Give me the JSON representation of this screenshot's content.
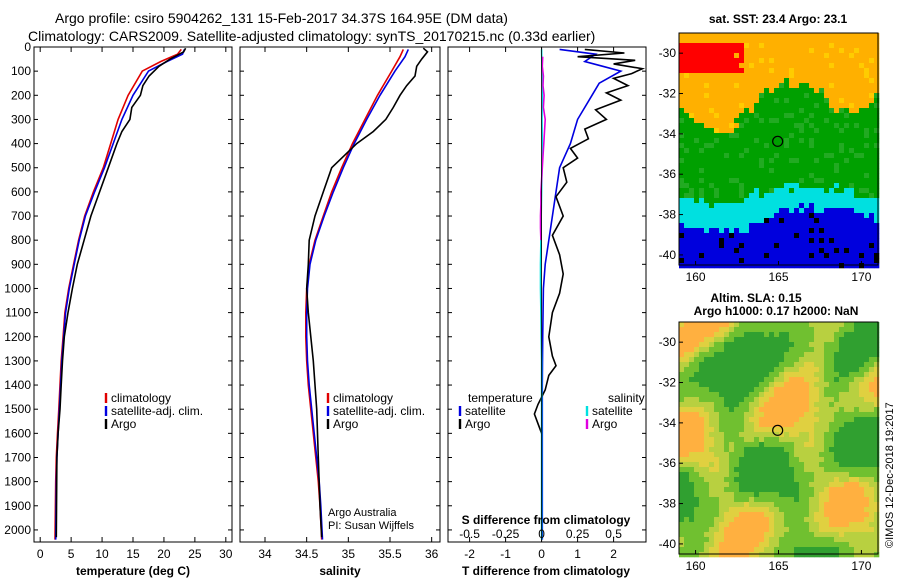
{
  "header": {
    "line1": "Argo profile: csiro 5904262_131 15-Feb-2017 34.37S 164.95E (DM data)",
    "line2": "Climatology: CARS2009. Satellite-adjusted climatology: synTS_20170215.nc (0.33d earlier)"
  },
  "colors": {
    "climatology": "#e00000",
    "satellite": "#0000e0",
    "argo": "#000000",
    "sat_salinity": "#00e0e0",
    "argo_salinity": "#e000e0"
  },
  "chart_data": [
    {
      "type": "line",
      "panel": "temperature",
      "xlabel": "temperature (deg C)",
      "xlim": [
        -1,
        31
      ],
      "xticks": [
        0,
        5,
        10,
        15,
        20,
        25,
        30
      ],
      "ylim": [
        2050,
        0
      ],
      "yticks": [
        0,
        100,
        200,
        300,
        400,
        500,
        600,
        700,
        800,
        900,
        1000,
        1100,
        1200,
        1300,
        1400,
        1500,
        1600,
        1700,
        1800,
        1900,
        2000
      ],
      "legend": [
        "climatology",
        "satellite-adj. clim.",
        "Argo"
      ],
      "series": [
        {
          "name": "climatology",
          "color": "#e00000",
          "x": [
            22.8,
            22.2,
            19.5,
            16.5,
            14.2,
            12.6,
            11.4,
            10.2,
            8.6,
            7.2,
            6.2,
            5.4,
            4.6,
            4.0,
            3.7,
            3.4,
            3.2,
            3.0,
            2.8,
            2.6,
            2.5,
            2.4
          ],
          "y": [
            10,
            30,
            60,
            100,
            200,
            300,
            400,
            500,
            600,
            700,
            800,
            900,
            1000,
            1100,
            1200,
            1300,
            1400,
            1500,
            1600,
            1700,
            1800,
            2040
          ]
        },
        {
          "name": "satellite-adj. clim.",
          "color": "#0000e0",
          "x": [
            23.3,
            23.0,
            20.5,
            17.5,
            15.0,
            13.2,
            11.8,
            10.4,
            8.8,
            7.3,
            6.3,
            5.5,
            4.7,
            4.1,
            3.8,
            3.5,
            3.3,
            3.1,
            2.9,
            2.7,
            2.6,
            2.5
          ],
          "y": [
            10,
            30,
            60,
            100,
            200,
            300,
            400,
            500,
            600,
            700,
            800,
            900,
            1000,
            1100,
            1200,
            1300,
            1400,
            1500,
            1600,
            1700,
            1800,
            2040
          ]
        },
        {
          "name": "Argo",
          "color": "#000000",
          "x": [
            23.5,
            23.2,
            21.0,
            19.2,
            17.6,
            16.6,
            16.2,
            14.8,
            14.5,
            13.2,
            12.4,
            11.0,
            9.6,
            8.2,
            7.1,
            6.0,
            5.2,
            4.5,
            3.9,
            3.6,
            3.4,
            3.2,
            2.9,
            2.7,
            2.6
          ],
          "y": [
            5,
            20,
            50,
            80,
            120,
            160,
            200,
            250,
            300,
            350,
            400,
            500,
            600,
            700,
            800,
            900,
            1000,
            1100,
            1200,
            1300,
            1400,
            1500,
            1600,
            1700,
            2030
          ]
        }
      ]
    },
    {
      "type": "line",
      "panel": "salinity",
      "xlabel": "salinity",
      "xlim": [
        33.7,
        36.1
      ],
      "xticks": [
        34,
        34.5,
        35,
        35.5,
        36
      ],
      "ylim": [
        2050,
        0
      ],
      "legend": [
        "climatology",
        "satellite-adj. clim.",
        "Argo"
      ],
      "annotations": [
        "Argo Australia",
        "PI: Susan Wijffels"
      ],
      "series": [
        {
          "name": "climatology",
          "color": "#e00000",
          "x": [
            35.66,
            35.62,
            35.52,
            35.35,
            35.2,
            35.05,
            34.92,
            34.8,
            34.7,
            34.6,
            34.53,
            34.5,
            34.49,
            34.49,
            34.5,
            34.52,
            34.55,
            34.58,
            34.61,
            34.64,
            34.66,
            34.68
          ],
          "y": [
            10,
            40,
            100,
            200,
            300,
            400,
            500,
            600,
            700,
            800,
            900,
            1000,
            1100,
            1200,
            1300,
            1400,
            1500,
            1600,
            1700,
            1800,
            1900,
            2040
          ]
        },
        {
          "name": "satellite-adj. clim.",
          "color": "#0000e0",
          "x": [
            35.72,
            35.68,
            35.56,
            35.38,
            35.22,
            35.07,
            34.94,
            34.82,
            34.71,
            34.61,
            34.54,
            34.51,
            34.5,
            34.5,
            34.51,
            34.53,
            34.56,
            34.59,
            34.62,
            34.65,
            34.67,
            34.69
          ],
          "y": [
            10,
            40,
            100,
            200,
            300,
            400,
            500,
            600,
            700,
            800,
            900,
            1000,
            1100,
            1200,
            1300,
            1400,
            1500,
            1600,
            1700,
            1800,
            1900,
            2040
          ]
        },
        {
          "name": "Argo",
          "color": "#000000",
          "x": [
            35.9,
            35.95,
            35.88,
            35.82,
            35.8,
            35.7,
            35.62,
            35.54,
            35.45,
            35.3,
            35.1,
            34.95,
            34.8,
            34.7,
            34.6,
            34.53,
            34.52,
            34.5,
            34.52,
            34.55,
            34.58,
            34.62,
            34.64,
            34.66,
            34.68
          ],
          "y": [
            5,
            20,
            50,
            80,
            120,
            160,
            200,
            250,
            300,
            350,
            400,
            450,
            500,
            600,
            700,
            800,
            900,
            1000,
            1100,
            1200,
            1300,
            1500,
            1700,
            1900,
            2030
          ]
        }
      ]
    },
    {
      "type": "line",
      "panel": "difference",
      "xlabel": "T difference from climatology",
      "xlabel_top": "S difference from climatology",
      "xlim": [
        -2.6,
        2.9
      ],
      "xticks": [
        -2,
        -1,
        0,
        1,
        2
      ],
      "xticks_top": [
        "-0.5",
        "-0.25",
        "0",
        "0.25",
        "0.5"
      ],
      "ylim": [
        2050,
        0
      ],
      "legend_left_title": "temperature",
      "legend_right_title": "salinity",
      "legend_left": [
        "satellite",
        "Argo"
      ],
      "legend_right": [
        "satellite",
        "Argo"
      ],
      "series": [
        {
          "name": "T satellite",
          "color": "#0000e0",
          "x": [
            0.5,
            1.5,
            1.2,
            1.7,
            2.2,
            1.6,
            1.4,
            1.0,
            0.8,
            0.5,
            0.4,
            0.2,
            0.1,
            0.05,
            0.03,
            0.02,
            0.02,
            0.02,
            0.02,
            0.02
          ],
          "y": [
            10,
            30,
            60,
            80,
            100,
            150,
            200,
            300,
            400,
            500,
            600,
            800,
            900,
            1000,
            1200,
            1400,
            1600,
            1800,
            1900,
            2040
          ]
        },
        {
          "name": "T Argo",
          "color": "#000000",
          "x": [
            1.2,
            2.3,
            1.0,
            2.6,
            2.0,
            2.8,
            2.5,
            2.0,
            2.4,
            1.8,
            2.2,
            1.5,
            1.8,
            1.2,
            1.3,
            0.8,
            1.0,
            0.6,
            0.7,
            0.4,
            0.6,
            0.3,
            0.5,
            0.6,
            0.5,
            0.3,
            0.2,
            0.3,
            0.4,
            0.2,
            0.1,
            -0.1,
            -0.2,
            -0.1,
            0.0
          ],
          "y": [
            10,
            25,
            40,
            55,
            70,
            90,
            110,
            130,
            160,
            190,
            220,
            260,
            300,
            340,
            380,
            420,
            460,
            500,
            560,
            620,
            700,
            780,
            860,
            940,
            1020,
            1100,
            1200,
            1280,
            1320,
            1360,
            1420,
            1480,
            1520,
            1560,
            1600
          ]
        },
        {
          "name": "S satellite",
          "color": "#00e0e0",
          "x": [
            0.0,
            0.01,
            0.02,
            0.01,
            0.02,
            0.01,
            0.0,
            -0.01,
            -0.02,
            -0.03,
            -0.03,
            -0.02,
            -0.01,
            0.0,
            0.0,
            0.0
          ],
          "y": [
            10,
            100,
            200,
            300,
            400,
            500,
            600,
            700,
            800,
            900,
            1000,
            1100,
            1200,
            1300,
            1400,
            2040
          ]
        },
        {
          "name": "S Argo",
          "color": "#e000e0",
          "x": [
            0.03,
            0.02,
            0.05,
            0.04,
            0.07,
            0.05,
            0.1,
            0.08,
            0.06,
            0.04,
            0.02,
            0.0,
            -0.02,
            -0.02,
            -0.03,
            -0.03,
            -0.02
          ],
          "y": [
            40,
            80,
            120,
            160,
            200,
            250,
            300,
            350,
            400,
            450,
            500,
            550,
            600,
            650,
            700,
            750,
            800
          ]
        }
      ]
    },
    {
      "type": "heatmap",
      "panel": "sst_map",
      "title": "sat. SST: 23.4 Argo: 23.1",
      "xlim": [
        159,
        171
      ],
      "xticks": [
        160,
        165,
        170
      ],
      "ylim": [
        -40.5,
        -29
      ],
      "yticks": [
        -30,
        -32,
        -34,
        -36,
        -38,
        -40
      ],
      "marker": {
        "lon": 164.95,
        "lat": -34.37
      }
    },
    {
      "type": "heatmap",
      "panel": "sla_map",
      "title": "Altim. SLA: 0.15",
      "subtitle": "Argo h1000: 0.17 h2000: NaN",
      "xlim": [
        159,
        171
      ],
      "xticks": [
        160,
        165,
        170
      ],
      "ylim": [
        -40.5,
        -29
      ],
      "yticks": [
        -30,
        -32,
        -34,
        -36,
        -38,
        -40
      ],
      "marker": {
        "lon": 164.95,
        "lat": -34.37
      }
    }
  ],
  "side_label": "©IMOS 12-Dec-2018 19:2017"
}
